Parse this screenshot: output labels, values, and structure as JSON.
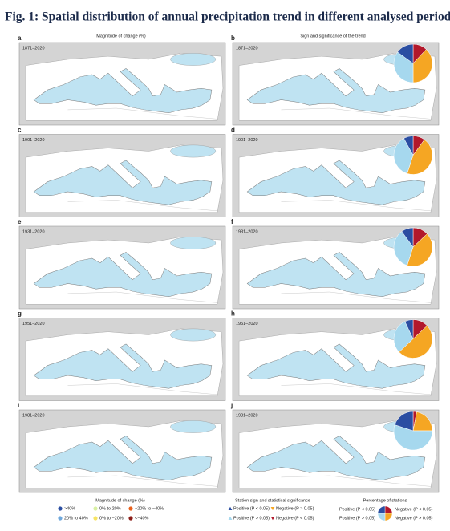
{
  "title": "Fig. 1: Spatial distribution of annual precipitation trend in different analysed periods.",
  "columns": [
    "Magnitude of change (%)",
    "Sign and significance of the trend"
  ],
  "panels": [
    {
      "letter": "a",
      "period": "1871–2020"
    },
    {
      "letter": "b",
      "period": "1871–2020",
      "pie": [
        12,
        38,
        35,
        15
      ]
    },
    {
      "letter": "c",
      "period": "1901–2020"
    },
    {
      "letter": "d",
      "period": "1901–2020",
      "pie": [
        10,
        45,
        37,
        8
      ]
    },
    {
      "letter": "e",
      "period": "1931–2020"
    },
    {
      "letter": "f",
      "period": "1931–2020",
      "pie": [
        13,
        42,
        35,
        10
      ]
    },
    {
      "letter": "g",
      "period": "1951–2020"
    },
    {
      "letter": "h",
      "period": "1951–2020",
      "pie": [
        13,
        50,
        30,
        7
      ]
    },
    {
      "letter": "i",
      "period": "1981–2020"
    },
    {
      "letter": "j",
      "period": "1981–2020",
      "pie": [
        3,
        22,
        55,
        20
      ]
    }
  ],
  "pie_categories": [
    "Negative (P < 0.05)",
    "Negative (P > 0.05)",
    "Positive (P > 0.05)",
    "Positive (P < 0.05)"
  ],
  "pie_colors": [
    "#b2182b",
    "#f5a623",
    "#a6d8ee",
    "#2b4ea2"
  ],
  "magnitude_legend": {
    "title": "Magnitude of change (%)",
    "items": [
      {
        "label": ">40%",
        "color": "#2b4ea2"
      },
      {
        "label": "0% to 20%",
        "color": "#d9f0a3"
      },
      {
        "label": "−20% to −40%",
        "color": "#e8601c"
      },
      {
        "label": "20% to 40%",
        "color": "#6fa8dc"
      },
      {
        "label": "0% to −20%",
        "color": "#f7e463"
      },
      {
        "label": "<−40%",
        "color": "#8c1d18"
      }
    ]
  },
  "sign_legend": {
    "title": "Station sign and statistical significance",
    "items": [
      {
        "label": "Positive (P < 0.05)",
        "color": "#2b4ea2",
        "symbol": "up"
      },
      {
        "label": "Negative (P > 0.05)",
        "color": "#f5a623",
        "symbol": "down"
      },
      {
        "label": "Positive (P > 0.05)",
        "color": "#a6d8ee",
        "symbol": "up"
      },
      {
        "label": "Negative (P < 0.05)",
        "color": "#b2182b",
        "symbol": "down"
      }
    ]
  },
  "pie_legend_title": "Percentage of stations"
}
